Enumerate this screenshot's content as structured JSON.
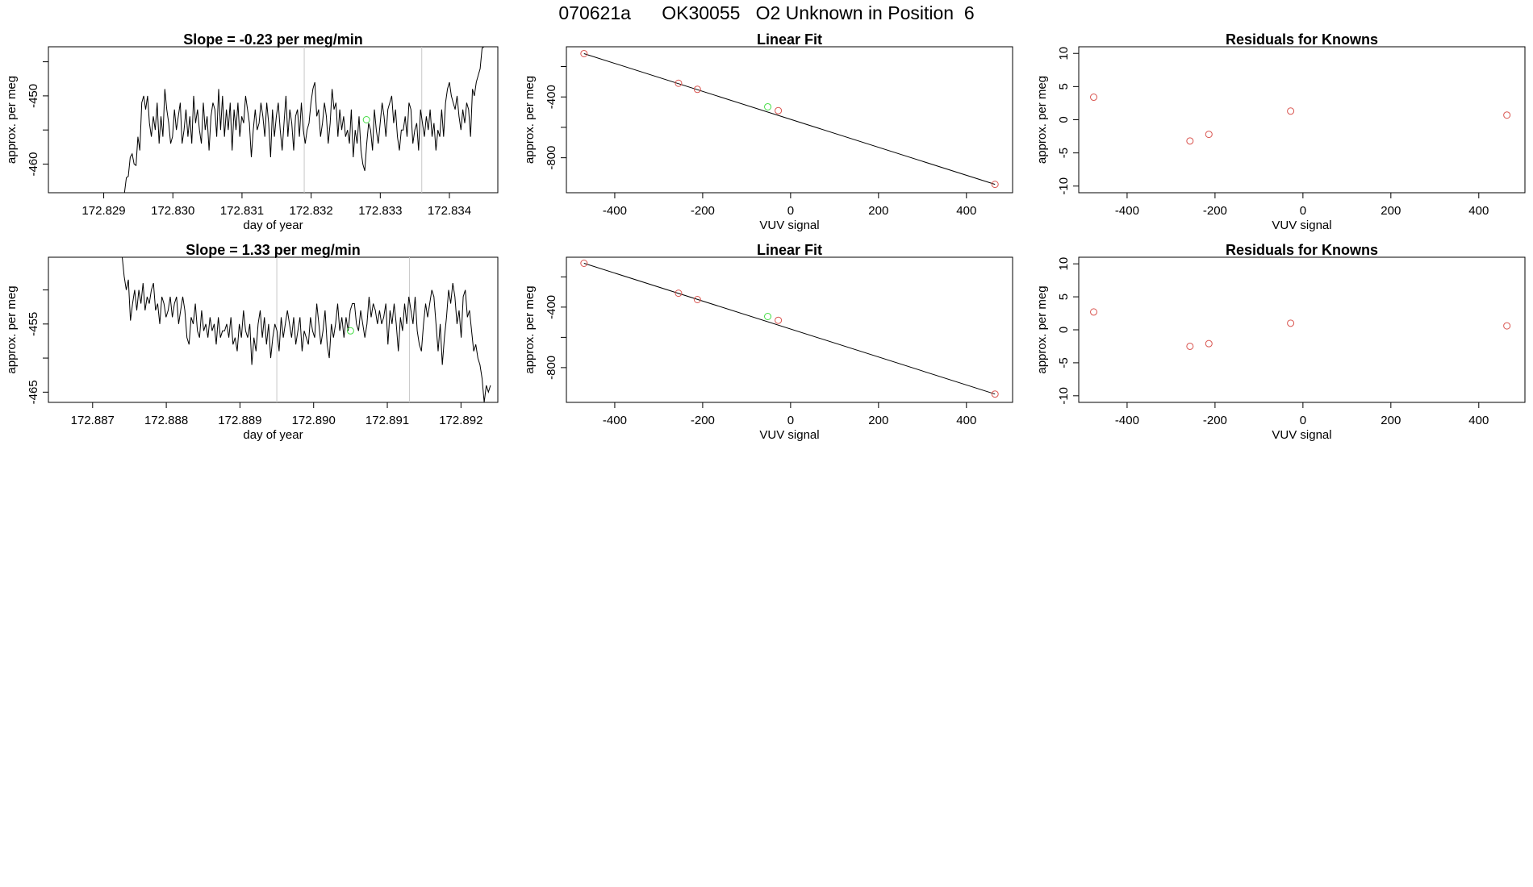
{
  "page_title": "070621a      OK30055   O2 Unknown in Position  6",
  "colors": {
    "line": "#000000",
    "known_point": "#d9544f",
    "unknown_point": "#44dd44",
    "vline": "#c8c8c8",
    "axis": "#000000"
  },
  "chart_data": [
    {
      "id": "ts1",
      "type": "line",
      "title": "Slope =  -0.23  per meg/min",
      "xlabel": "day of year",
      "ylabel": "approx. per meg",
      "xlim": [
        172.8282,
        172.8347
      ],
      "ylim": [
        -464.2,
        -442.8
      ],
      "xticks": [
        "172.829",
        "172.830",
        "172.831",
        "172.832",
        "172.833",
        "172.834"
      ],
      "yticks": [
        "-450",
        "-460"
      ],
      "ytick_values": [
        -450,
        -460
      ],
      "yminor_ticks": [
        -445,
        -455
      ],
      "vlines": [
        172.8319,
        172.8336
      ],
      "x_start": 172.8293,
      "x_end": 172.8345,
      "y": [
        -464.2,
        -462,
        -461.8,
        -459,
        -458.5,
        -460,
        -460.2,
        -456,
        -458,
        -451,
        -450,
        -452,
        -450,
        -454,
        -456,
        -453,
        -455,
        -451,
        -457,
        -453,
        -456,
        -449,
        -452,
        -454,
        -457,
        -456,
        -452,
        -455,
        -453,
        -451,
        -457,
        -455,
        -452,
        -456,
        -453,
        -457,
        -450,
        -454,
        -452,
        -455,
        -457,
        -451,
        -455,
        -453,
        -458,
        -453,
        -451,
        -452,
        -456,
        -449,
        -455,
        -450,
        -456,
        -452,
        -455,
        -451,
        -458,
        -452,
        -455,
        -451,
        -456,
        -453,
        -454,
        -450,
        -452,
        -454,
        -459,
        -455,
        -452,
        -455,
        -454,
        -451,
        -453,
        -456,
        -451,
        -454,
        -459,
        -452,
        -456,
        -453,
        -451,
        -455,
        -458,
        -454,
        -450,
        -456,
        -452,
        -454,
        -458,
        -453,
        -452,
        -456,
        -451,
        -455,
        -457,
        -455,
        -454,
        -451,
        -449,
        -448,
        -453,
        -452,
        -456,
        -454,
        -451,
        -453,
        -457,
        -454,
        -449,
        -452,
        -451,
        -456,
        -452,
        -455,
        -453,
        -456,
        -455,
        -457,
        -452,
        -459,
        -455,
        -457,
        -453,
        -458,
        -460,
        -461,
        -457,
        -454,
        -455,
        -458,
        -452,
        -455,
        -457,
        -454,
        -451,
        -453,
        -456,
        -452,
        -451,
        -450,
        -454,
        -452,
        -456,
        -458,
        -455,
        -455,
        -453,
        -456,
        -451,
        -452,
        -457,
        -455,
        -454,
        -458,
        -452,
        -454,
        -456,
        -453,
        -455,
        -452,
        -456,
        -454,
        -458,
        -455,
        -456,
        -452,
        -456,
        -451,
        -449,
        -448,
        -450,
        -451,
        -452,
        -450,
        -453,
        -455,
        -452,
        -454,
        -451,
        -452,
        -456,
        -449,
        -450,
        -448,
        -447,
        -446,
        -443,
        -442.8
      ],
      "unknown_point": [
        172.8328,
        -453.5
      ],
      "panel": "row1-col1"
    },
    {
      "id": "fit1",
      "type": "scatter",
      "title": "Linear Fit",
      "xlabel": "VUV signal",
      "ylabel": "approx. per meg",
      "xlim": [
        -510,
        505
      ],
      "ylim": [
        -1030,
        -70
      ],
      "xticks": [
        "-400",
        "-200",
        "0",
        "200",
        "400"
      ],
      "yticks": [
        "-400",
        "-800"
      ],
      "ytick_values": [
        -400,
        -800
      ],
      "yminor_ticks": [
        -200,
        -600
      ],
      "fit_line": [
        [
          -470,
          -115
        ],
        [
          465,
          -975
        ]
      ],
      "known_points": [
        [
          -470,
          -115
        ],
        [
          -255,
          -310
        ],
        [
          -212,
          -350
        ],
        [
          -28,
          -490
        ],
        [
          465,
          -975
        ]
      ],
      "unknown_points": [
        [
          -52,
          -465
        ]
      ],
      "panel": "row1-col2"
    },
    {
      "id": "res1",
      "type": "scatter",
      "title": "Residuals for Knowns",
      "xlabel": "VUV signal",
      "ylabel": "approx. per meg",
      "xlim": [
        -510,
        505
      ],
      "ylim": [
        -11,
        11
      ],
      "xticks": [
        "-400",
        "-200",
        "0",
        "200",
        "400"
      ],
      "yticks": [
        "10",
        "5",
        "0",
        "-5",
        "-10"
      ],
      "ytick_values": [
        10,
        5,
        0,
        -5,
        -10
      ],
      "points": [
        [
          -476,
          3.4
        ],
        [
          -257,
          -3.2
        ],
        [
          -214,
          -2.2
        ],
        [
          -28,
          1.3
        ],
        [
          464,
          0.7
        ]
      ],
      "panel": "row1-col3"
    },
    {
      "id": "ts2",
      "type": "line",
      "title": "Slope =  1.33  per meg/min",
      "xlabel": "day of year",
      "ylabel": "approx. per meg",
      "xlim": [
        172.8864,
        172.8925
      ],
      "ylim": [
        -466.5,
        -445.2
      ],
      "xticks": [
        "172.887",
        "172.888",
        "172.889",
        "172.890",
        "172.891",
        "172.892"
      ],
      "yticks": [
        "-455",
        "-465"
      ],
      "ytick_values": [
        -455,
        -465
      ],
      "yminor_ticks": [
        -450,
        -460
      ],
      "vlines": [
        172.8895,
        172.8913
      ],
      "x_start": 172.8874,
      "x_end": 172.8924,
      "y": [
        -445,
        -448,
        -450,
        -448.5,
        -454.5,
        -452,
        -450,
        -453,
        -450,
        -452,
        -449,
        -453,
        -451,
        -452,
        -450,
        -449,
        -453,
        -452,
        -455,
        -451,
        -452,
        -454,
        -453,
        -451,
        -454,
        -452,
        -451,
        -455,
        -453,
        -451,
        -453,
        -457,
        -458,
        -454,
        -455,
        -452,
        -456,
        -457,
        -453,
        -456,
        -455,
        -457,
        -454,
        -456,
        -455,
        -458,
        -454,
        -457,
        -456,
        -456,
        -455,
        -457,
        -454,
        -458,
        -457,
        -459,
        -455,
        -457,
        -453,
        -456,
        -457,
        -455,
        -461,
        -457,
        -459,
        -455,
        -453,
        -457,
        -454,
        -458,
        -455,
        -460,
        -457,
        -455,
        -456,
        -459,
        -454,
        -457,
        -455,
        -453,
        -455,
        -457,
        -454,
        -458,
        -456,
        -454,
        -459,
        -456,
        -457,
        -458,
        -454,
        -456,
        -457,
        -452,
        -455,
        -458,
        -456,
        -453,
        -458,
        -460,
        -455,
        -457,
        -455,
        -452,
        -456,
        -454,
        -457,
        -454,
        -456,
        -453,
        -452,
        -452,
        -455,
        -456,
        -453,
        -455,
        -457,
        -455,
        -451,
        -454,
        -452,
        -453,
        -455,
        -453,
        -455,
        -454,
        -452,
        -458,
        -453,
        -455,
        -452,
        -455,
        -459,
        -454,
        -456,
        -452,
        -455,
        -451,
        -453,
        -455,
        -451,
        -456,
        -458,
        -459,
        -455,
        -452,
        -454,
        -452,
        -450,
        -451,
        -455,
        -459,
        -455,
        -461,
        -457,
        -454,
        -450,
        -452,
        -449,
        -451,
        -455,
        -453,
        -457,
        -451,
        -450,
        -454,
        -453,
        -456,
        -459,
        -458,
        -460,
        -461,
        -463,
        -466.5,
        -464,
        -465,
        -464
      ],
      "unknown_point": [
        172.8905,
        -456
      ],
      "panel": "row2-col1"
    },
    {
      "id": "fit2",
      "type": "scatter",
      "title": "Linear Fit",
      "xlabel": "VUV signal",
      "ylabel": "approx. per meg",
      "xlim": [
        -510,
        505
      ],
      "ylim": [
        -1030,
        -70
      ],
      "xticks": [
        "-400",
        "-200",
        "0",
        "200",
        "400"
      ],
      "yticks": [
        "-400",
        "-800"
      ],
      "ytick_values": [
        -400,
        -800
      ],
      "yminor_ticks": [
        -200,
        -600
      ],
      "fit_line": [
        [
          -470,
          -110
        ],
        [
          465,
          -975
        ]
      ],
      "known_points": [
        [
          -470,
          -110
        ],
        [
          -255,
          -308
        ],
        [
          -212,
          -350
        ],
        [
          -28,
          -487
        ],
        [
          465,
          -975
        ]
      ],
      "unknown_points": [
        [
          -52,
          -462
        ]
      ],
      "panel": "row2-col2"
    },
    {
      "id": "res2",
      "type": "scatter",
      "title": "Residuals for Knowns",
      "xlabel": "VUV signal",
      "ylabel": "approx. per meg",
      "xlim": [
        -510,
        505
      ],
      "ylim": [
        -11,
        11
      ],
      "xticks": [
        "-400",
        "-200",
        "0",
        "200",
        "400"
      ],
      "yticks": [
        "10",
        "5",
        "0",
        "-5",
        "-10"
      ],
      "ytick_values": [
        10,
        5,
        0,
        -5,
        -10
      ],
      "points": [
        [
          -476,
          2.7
        ],
        [
          -257,
          -2.5
        ],
        [
          -214,
          -2.1
        ],
        [
          -28,
          1.0
        ],
        [
          464,
          0.6
        ]
      ],
      "panel": "row2-col3"
    }
  ]
}
